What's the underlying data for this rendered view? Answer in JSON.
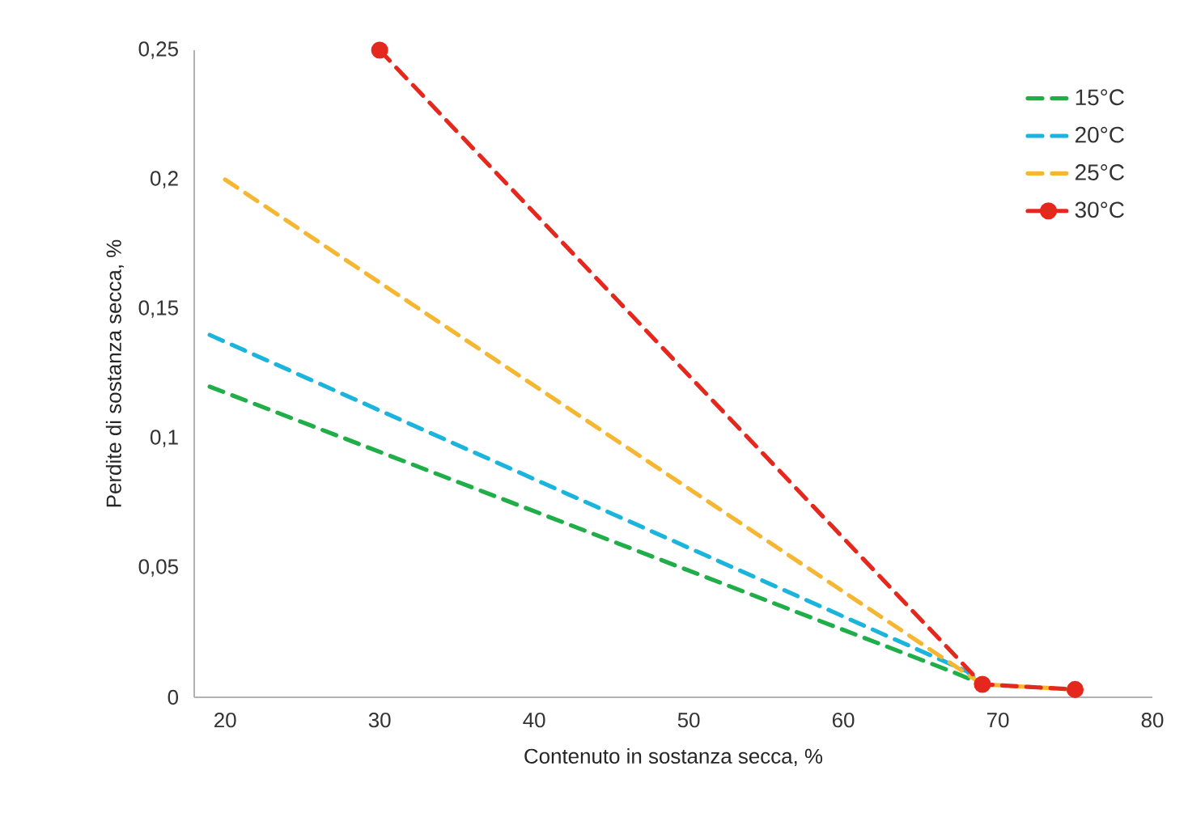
{
  "chart_data": {
    "type": "line",
    "xlabel": "Contenuto in sostanza secca, %",
    "ylabel": "Perdite di sostanza secca, %",
    "xlim": [
      18,
      80
    ],
    "xticks": [
      20,
      30,
      40,
      50,
      60,
      70,
      80
    ],
    "ylim": [
      0,
      0.25
    ],
    "yticks": [
      {
        "value": 0,
        "label": "0"
      },
      {
        "value": 0.05,
        "label": "0,05"
      },
      {
        "value": 0.1,
        "label": "0,1"
      },
      {
        "value": 0.15,
        "label": "0,15"
      },
      {
        "value": 0.2,
        "label": "0,2"
      },
      {
        "value": 0.25,
        "label": "0,25"
      }
    ],
    "grid": false,
    "legend": "top right",
    "line_style": "dashed",
    "series": [
      {
        "name": "15°C",
        "color": "#1fae48",
        "x": [
          19,
          67,
          69
        ],
        "values": [
          0.12,
          0.01,
          0.005
        ]
      },
      {
        "name": "20°C",
        "color": "#1ab4dc",
        "x": [
          19,
          68,
          69
        ],
        "values": [
          0.14,
          0.01,
          0.005
        ]
      },
      {
        "name": "25°C",
        "color": "#f5b731",
        "x": [
          20,
          69,
          75
        ],
        "values": [
          0.2,
          0.005,
          0.003
        ]
      },
      {
        "name": "30°C",
        "color": "#e5281e",
        "x": [
          30,
          69,
          75
        ],
        "values": [
          0.25,
          0.005,
          0.003
        ],
        "marker": "circle"
      }
    ]
  }
}
